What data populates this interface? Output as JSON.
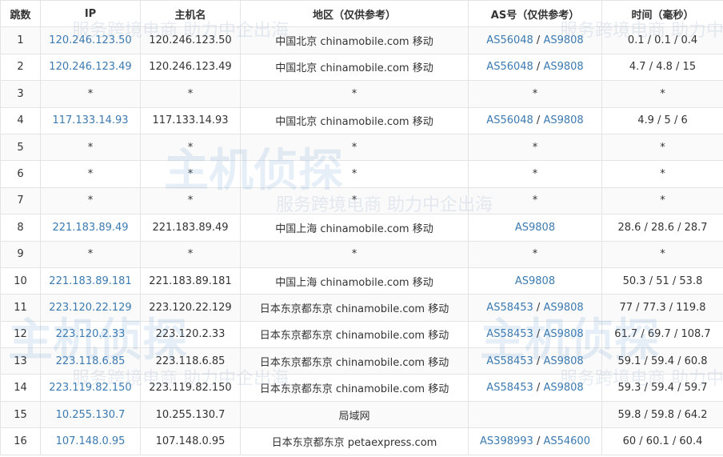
{
  "headers": [
    "跳数",
    "IP",
    "主机名",
    "地区（仅供参考）",
    "AS号（仅供参考）",
    "时间（毫秒）"
  ],
  "watermark": {
    "logo": "主机侦探",
    "slogan": "服务跨境电商 助力中企出海"
  },
  "rows": [
    {
      "hop": "1",
      "ip": "120.246.123.50",
      "host": "120.246.123.50",
      "region": "中国北京 chinamobile.com 移动",
      "as": [
        "AS56048",
        "AS9808"
      ],
      "time": "0.1 / 0.1 / 0.4"
    },
    {
      "hop": "2",
      "ip": "120.246.123.49",
      "host": "120.246.123.49",
      "region": "中国北京 chinamobile.com 移动",
      "as": [
        "AS56048",
        "AS9808"
      ],
      "time": "4.7 / 4.8 / 15"
    },
    {
      "hop": "3",
      "ip": "*",
      "host": "*",
      "region": "*",
      "as_text": "*",
      "time": "*"
    },
    {
      "hop": "4",
      "ip": "117.133.14.93",
      "host": "117.133.14.93",
      "region": "中国北京 chinamobile.com 移动",
      "as": [
        "AS56048",
        "AS9808"
      ],
      "time": "4.9 / 5 / 6"
    },
    {
      "hop": "5",
      "ip": "*",
      "host": "*",
      "region": "*",
      "as_text": "*",
      "time": "*"
    },
    {
      "hop": "6",
      "ip": "*",
      "host": "*",
      "region": "*",
      "as_text": "*",
      "time": "*"
    },
    {
      "hop": "7",
      "ip": "*",
      "host": "*",
      "region": "*",
      "as_text": "*",
      "time": "*"
    },
    {
      "hop": "8",
      "ip": "221.183.89.49",
      "host": "221.183.89.49",
      "region": "中国上海 chinamobile.com 移动",
      "as": [
        "AS9808"
      ],
      "time": "28.6 / 28.6 / 28.7"
    },
    {
      "hop": "9",
      "ip": "*",
      "host": "*",
      "region": "*",
      "as_text": "*",
      "time": "*"
    },
    {
      "hop": "10",
      "ip": "221.183.89.181",
      "host": "221.183.89.181",
      "region": "中国上海 chinamobile.com 移动",
      "as": [
        "AS9808"
      ],
      "time": "50.3 / 51 / 53.8"
    },
    {
      "hop": "11",
      "ip": "223.120.22.129",
      "host": "223.120.22.129",
      "region": "日本东京都东京 chinamobile.com 移动",
      "as": [
        "AS58453",
        "AS9808"
      ],
      "time": "77 / 77.3 / 119.8"
    },
    {
      "hop": "12",
      "ip": "223.120.2.33",
      "host": "223.120.2.33",
      "region": "日本东京都东京 chinamobile.com 移动",
      "as": [
        "AS58453",
        "AS9808"
      ],
      "time": "61.7 / 69.7 / 108.7"
    },
    {
      "hop": "13",
      "ip": "223.118.6.85",
      "host": "223.118.6.85",
      "region": "日本东京都东京 chinamobile.com 移动",
      "as": [
        "AS58453",
        "AS9808"
      ],
      "time": "59.1 / 59.4 / 60.8"
    },
    {
      "hop": "14",
      "ip": "223.119.82.150",
      "host": "223.119.82.150",
      "region": "日本东京都东京 chinamobile.com 移动",
      "as": [
        "AS58453",
        "AS9808"
      ],
      "time": "59.3 / 59.4 / 59.7"
    },
    {
      "hop": "15",
      "ip": "10.255.130.7",
      "host": "10.255.130.7",
      "region": "局域网",
      "as": [],
      "time": "59.8 / 59.8 / 64.2"
    },
    {
      "hop": "16",
      "ip": "107.148.0.95",
      "host": "107.148.0.95",
      "region": "日本东京都东京 petaexpress.com",
      "as": [
        "AS398993",
        "AS54600"
      ],
      "time": "60 / 60.1 / 60.4"
    }
  ]
}
